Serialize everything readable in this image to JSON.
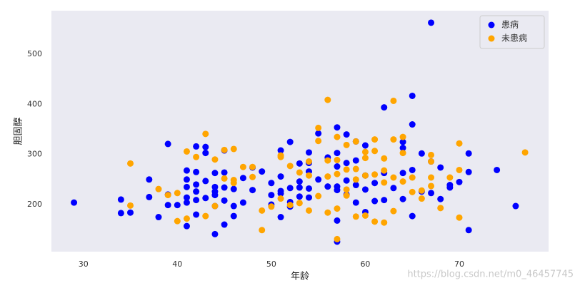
{
  "chart_data": {
    "type": "scatter",
    "xlabel": "年龄",
    "ylabel": "胆固醇",
    "xlim": [
      26.6,
      79.5
    ],
    "ylim": [
      106,
      587
    ],
    "xticks": [
      30,
      40,
      50,
      60,
      70
    ],
    "yticks": [
      200,
      300,
      400,
      500
    ],
    "grid": false,
    "legend": "upper right",
    "watermark": "https://blog.csdn.net/m0_46457745",
    "series": [
      {
        "name": "患病",
        "color": "#0000ff",
        "x": [
          29,
          34,
          34,
          35,
          37,
          37,
          38,
          39,
          39,
          39,
          40,
          41,
          41,
          41,
          41,
          41,
          41,
          42,
          42,
          42,
          42,
          42,
          42,
          43,
          43,
          43,
          43,
          44,
          44,
          44,
          44,
          44,
          44,
          45,
          45,
          45,
          45,
          45,
          46,
          46,
          46,
          47,
          47,
          48,
          48,
          49,
          50,
          50,
          50,
          51,
          51,
          51,
          51,
          51,
          52,
          52,
          52,
          52,
          53,
          53,
          53,
          53,
          54,
          54,
          54,
          54,
          54,
          55,
          55,
          56,
          56,
          57,
          57,
          57,
          57,
          57,
          57,
          57,
          58,
          58,
          58,
          58,
          59,
          59,
          59,
          59,
          60,
          60,
          60,
          60,
          61,
          61,
          62,
          62,
          62,
          63,
          64,
          64,
          64,
          64,
          65,
          65,
          65,
          65,
          66,
          66,
          67,
          67,
          67,
          68,
          68,
          69,
          69,
          70,
          71,
          71,
          71,
          74,
          76
        ],
        "values": [
          204,
          210,
          183,
          184,
          250,
          215,
          175,
          321,
          220,
          199,
          199,
          157,
          268,
          235,
          204,
          214,
          250,
          316,
          265,
          240,
          226,
          209,
          180,
          315,
          303,
          247,
          213,
          263,
          235,
          226,
          219,
          141,
          197,
          308,
          264,
          234,
          208,
          160,
          231,
          197,
          177,
          253,
          204,
          274,
          229,
          266,
          243,
          219,
          200,
          308,
          256,
          227,
          222,
          175,
          325,
          233,
          205,
          196,
          282,
          246,
          234,
          216,
          304,
          283,
          266,
          232,
          214,
          342,
          250,
          294,
          236,
          354,
          303,
          276,
          236,
          229,
          168,
          126,
          340,
          283,
          248,
          220,
          326,
          288,
          239,
          204,
          318,
          258,
          230,
          185,
          243,
          207,
          394,
          263,
          209,
          233,
          325,
          313,
          263,
          211,
          417,
          360,
          269,
          177,
          302,
          226,
          563,
          286,
          223,
          274,
          211,
          239,
          234,
          245,
          302,
          265,
          149,
          269,
          197
        ]
      },
      {
        "name": "未患病",
        "color": "#ffa500",
        "x": [
          35,
          35,
          38,
          39,
          40,
          40,
          41,
          41,
          42,
          43,
          43,
          44,
          44,
          45,
          45,
          46,
          46,
          46,
          47,
          48,
          48,
          49,
          49,
          50,
          51,
          51,
          51,
          52,
          52,
          53,
          53,
          54,
          54,
          54,
          55,
          55,
          55,
          56,
          56,
          56,
          56,
          57,
          57,
          57,
          57,
          57,
          58,
          58,
          58,
          58,
          59,
          59,
          59,
          59,
          60,
          60,
          60,
          60,
          61,
          61,
          61,
          61,
          62,
          62,
          62,
          62,
          63,
          63,
          63,
          63,
          64,
          64,
          64,
          65,
          65,
          66,
          66,
          67,
          67,
          67,
          67,
          68,
          69,
          70,
          70,
          70,
          77
        ],
        "values": [
          282,
          198,
          231,
          219,
          223,
          167,
          172,
          306,
          295,
          341,
          177,
          290,
          197,
          309,
          252,
          311,
          249,
          243,
          275,
          275,
          255,
          188,
          149,
          196,
          298,
          295,
          212,
          277,
          199,
          264,
          203,
          286,
          258,
          188,
          353,
          327,
          217,
          409,
          288,
          256,
          184,
          335,
          289,
          261,
          131,
          192,
          319,
          270,
          230,
          218,
          326,
          271,
          250,
          176,
          305,
          293,
          258,
          178,
          330,
          307,
          260,
          166,
          292,
          268,
          244,
          164,
          407,
          330,
          254,
          187,
          335,
          303,
          246,
          254,
          225,
          228,
          212,
          299,
          286,
          254,
          237,
          193,
          254,
          322,
          269,
          174,
          304
        ]
      }
    ]
  }
}
